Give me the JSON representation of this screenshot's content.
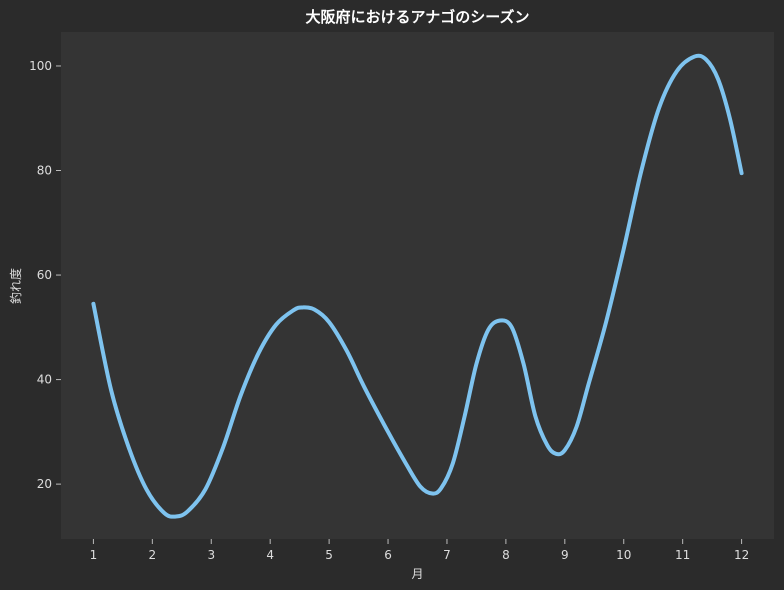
{
  "chart_data": {
    "type": "line",
    "title": "大阪府におけるアナゴのシーズン",
    "xlabel": "月",
    "ylabel": "釣れ度",
    "x": [
      1,
      2,
      3,
      4,
      5,
      6,
      7,
      8,
      9,
      10,
      11,
      12
    ],
    "xlim": [
      0.45,
      12.55
    ],
    "ylim": [
      9.5,
      106.5
    ],
    "x_ticks": [
      1,
      2,
      3,
      4,
      5,
      6,
      7,
      8,
      9,
      10,
      11,
      12
    ],
    "y_ticks": [
      20,
      40,
      60,
      80,
      100
    ],
    "grid": false,
    "series": [
      {
        "curve_points": [
          [
            1.0,
            54.5
          ],
          [
            1.3,
            38
          ],
          [
            1.6,
            27
          ],
          [
            1.9,
            19
          ],
          [
            2.2,
            14.5
          ],
          [
            2.4,
            13.8
          ],
          [
            2.6,
            14.8
          ],
          [
            2.9,
            19
          ],
          [
            3.2,
            27
          ],
          [
            3.5,
            37
          ],
          [
            3.8,
            45
          ],
          [
            4.1,
            50.5
          ],
          [
            4.4,
            53.3
          ],
          [
            4.55,
            53.8
          ],
          [
            4.75,
            53.4
          ],
          [
            5.0,
            51
          ],
          [
            5.3,
            45.5
          ],
          [
            5.6,
            38.5
          ],
          [
            6.0,
            30
          ],
          [
            6.3,
            24
          ],
          [
            6.55,
            19.5
          ],
          [
            6.75,
            18.2
          ],
          [
            6.9,
            19.2
          ],
          [
            7.1,
            24
          ],
          [
            7.3,
            33
          ],
          [
            7.5,
            43
          ],
          [
            7.7,
            49.5
          ],
          [
            7.9,
            51.3
          ],
          [
            8.1,
            50
          ],
          [
            8.3,
            43
          ],
          [
            8.5,
            33
          ],
          [
            8.7,
            27.5
          ],
          [
            8.85,
            25.8
          ],
          [
            9.0,
            26.5
          ],
          [
            9.2,
            31
          ],
          [
            9.4,
            39
          ],
          [
            9.7,
            51
          ],
          [
            10.0,
            65
          ],
          [
            10.3,
            80
          ],
          [
            10.6,
            92
          ],
          [
            10.9,
            99
          ],
          [
            11.2,
            101.8
          ],
          [
            11.4,
            101.2
          ],
          [
            11.6,
            97.5
          ],
          [
            11.8,
            90
          ],
          [
            12.0,
            79.5
          ]
        ]
      }
    ],
    "colors": {
      "background": "#2b2b2b",
      "plot_area": "#343434",
      "line": "#7ec3ef",
      "text": "#dddddd",
      "title": "#ffffff"
    }
  }
}
